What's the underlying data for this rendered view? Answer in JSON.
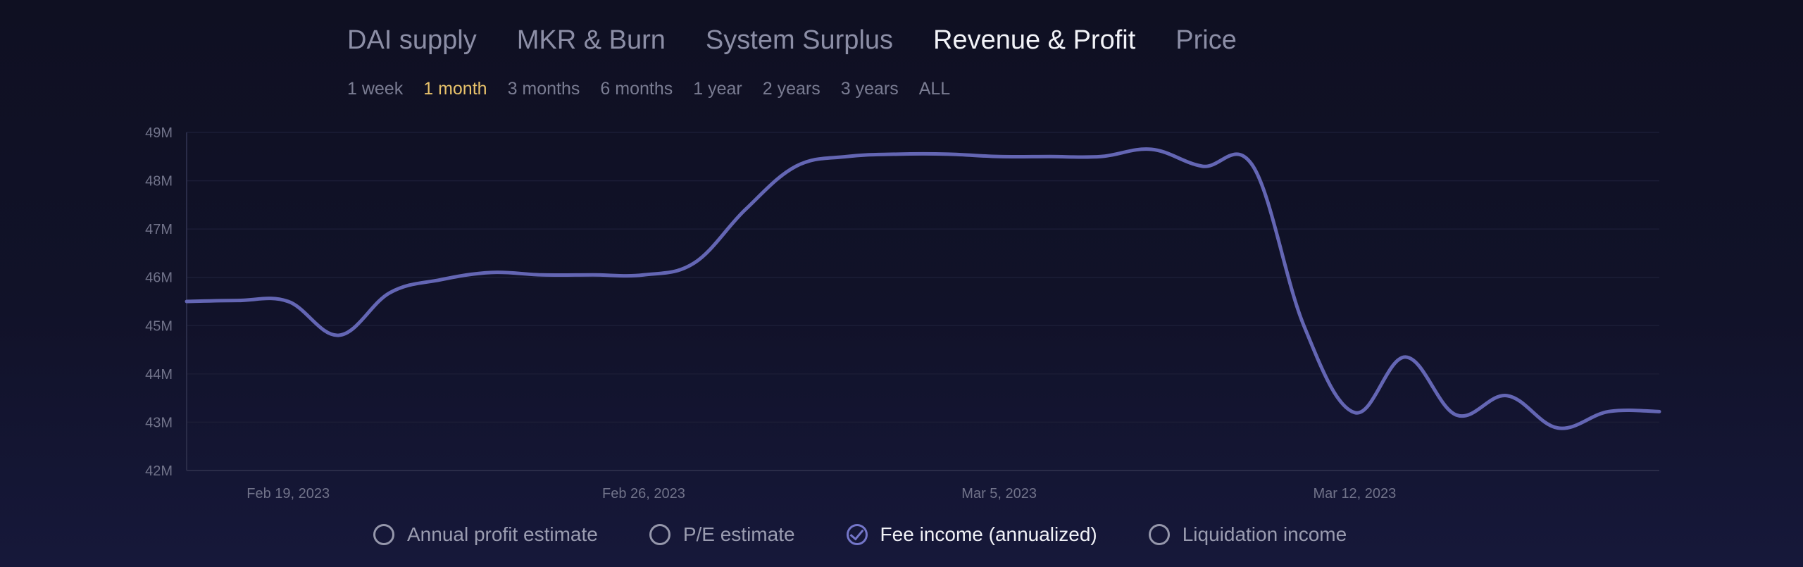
{
  "main_tabs": [
    {
      "label": "DAI supply",
      "active": false
    },
    {
      "label": "MKR & Burn",
      "active": false
    },
    {
      "label": "System Surplus",
      "active": false
    },
    {
      "label": "Revenue & Profit",
      "active": true
    },
    {
      "label": "Price",
      "active": false
    }
  ],
  "range_tabs": [
    {
      "label": "1 week",
      "active": false
    },
    {
      "label": "1 month",
      "active": true
    },
    {
      "label": "3 months",
      "active": false
    },
    {
      "label": "6 months",
      "active": false
    },
    {
      "label": "1 year",
      "active": false
    },
    {
      "label": "2 years",
      "active": false
    },
    {
      "label": "3 years",
      "active": false
    },
    {
      "label": "ALL",
      "active": false
    }
  ],
  "legend": [
    {
      "label": "Annual profit estimate",
      "checked": false
    },
    {
      "label": "P/E estimate",
      "checked": false
    },
    {
      "label": "Fee income (annualized)",
      "checked": true
    },
    {
      "label": "Liquidation income",
      "checked": false
    }
  ],
  "colors": {
    "line": "#6466b4",
    "active_range": "#e8c26b",
    "axis_text": "#71738a"
  },
  "chart_data": {
    "type": "line",
    "title": "",
    "xlabel": "",
    "ylabel": "",
    "ylim": [
      42,
      49
    ],
    "y_unit": "M",
    "y_ticks": [
      "42M",
      "43M",
      "44M",
      "45M",
      "46M",
      "47M",
      "48M",
      "49M"
    ],
    "x_ticks": [
      {
        "date": "2023-02-19",
        "label": "Feb 19, 2023"
      },
      {
        "date": "2023-02-26",
        "label": "Feb 26, 2023"
      },
      {
        "date": "2023-03-05",
        "label": "Mar 5, 2023"
      },
      {
        "date": "2023-03-12",
        "label": "Mar 12, 2023"
      }
    ],
    "x_domain": [
      "2023-02-17",
      "2023-03-18"
    ],
    "grid": true,
    "series": [
      {
        "values": [
          {
            "x": "2023-02-17",
            "y": 45.5
          },
          {
            "x": "2023-02-18",
            "y": 45.52
          },
          {
            "x": "2023-02-19",
            "y": 45.5
          },
          {
            "x": "2023-02-20",
            "y": 44.8
          },
          {
            "x": "2023-02-21",
            "y": 45.68
          },
          {
            "x": "2023-02-22",
            "y": 45.95
          },
          {
            "x": "2023-02-23",
            "y": 46.1
          },
          {
            "x": "2023-02-24",
            "y": 46.05
          },
          {
            "x": "2023-02-25",
            "y": 46.05
          },
          {
            "x": "2023-02-26",
            "y": 46.05
          },
          {
            "x": "2023-02-27",
            "y": 46.3
          },
          {
            "x": "2023-02-28",
            "y": 47.4
          },
          {
            "x": "2023-03-01",
            "y": 48.3
          },
          {
            "x": "2023-03-02",
            "y": 48.5
          },
          {
            "x": "2023-03-03",
            "y": 48.55
          },
          {
            "x": "2023-03-04",
            "y": 48.55
          },
          {
            "x": "2023-03-05",
            "y": 48.5
          },
          {
            "x": "2023-03-06",
            "y": 48.5
          },
          {
            "x": "2023-03-07",
            "y": 48.5
          },
          {
            "x": "2023-03-08",
            "y": 48.65
          },
          {
            "x": "2023-03-09",
            "y": 48.3
          },
          {
            "x": "2023-03-10",
            "y": 48.3
          },
          {
            "x": "2023-03-11",
            "y": 45.0
          },
          {
            "x": "2023-03-12",
            "y": 43.2
          },
          {
            "x": "2023-03-13",
            "y": 44.35
          },
          {
            "x": "2023-03-14",
            "y": 43.15
          },
          {
            "x": "2023-03-15",
            "y": 43.55
          },
          {
            "x": "2023-03-16",
            "y": 42.88
          },
          {
            "x": "2023-03-17",
            "y": 43.22
          },
          {
            "x": "2023-03-18",
            "y": 43.22
          }
        ]
      }
    ]
  }
}
